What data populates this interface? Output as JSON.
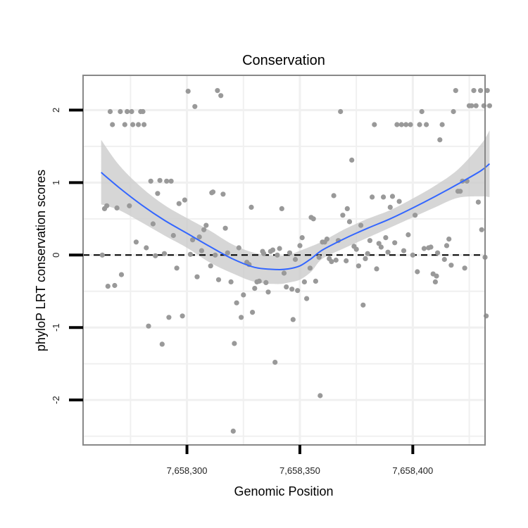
{
  "chart_data": {
    "type": "scatter",
    "title": "Conservation",
    "xlabel": "Genomic Position",
    "ylabel": "phyloP LRT conservation scores",
    "xlim": [
      7658254,
      7658432
    ],
    "ylim": [
      -2.62,
      2.48
    ],
    "x_ticks": [
      7658300,
      7658350,
      7658400
    ],
    "x_tick_labels": [
      "7,658,300",
      "7,658,350",
      "7,658,400"
    ],
    "y_ticks": [
      -2,
      -1,
      0,
      1,
      2
    ],
    "y_tick_labels": [
      "-2",
      "-1",
      "0",
      "1",
      "2"
    ],
    "x_minor_grid": [
      7658275,
      7658325,
      7658375,
      7658425
    ],
    "y_minor_grid": [
      -2.5,
      -1.5,
      -0.5,
      0.5,
      1.5
    ],
    "hline": {
      "y": 0,
      "style": "dashed"
    },
    "colors": {
      "points": "#999999",
      "smooth": "#3366ff",
      "band": "#cccccc",
      "border": "#888888",
      "grid": "#f0f0f0"
    },
    "series": [
      {
        "name": "observations",
        "points": [
          [
            7658262.5,
            0.0
          ],
          [
            7658263.5,
            0.64
          ],
          [
            7658264.5,
            0.68
          ],
          [
            7658265,
            -0.43
          ],
          [
            7658266,
            1.98
          ],
          [
            7658267,
            1.8
          ],
          [
            7658268,
            -0.42
          ],
          [
            7658269,
            0.65
          ],
          [
            7658270.5,
            1.98
          ],
          [
            7658271,
            -0.27
          ],
          [
            7658272.5,
            1.8
          ],
          [
            7658273.5,
            1.98
          ],
          [
            7658274.5,
            0.68
          ],
          [
            7658275.5,
            1.98
          ],
          [
            7658276,
            1.8
          ],
          [
            7658277.5,
            0.18
          ],
          [
            7658278.5,
            1.8
          ],
          [
            7658279.5,
            1.98
          ],
          [
            7658280.5,
            1.98
          ],
          [
            7658281,
            1.8
          ],
          [
            7658282,
            0.1
          ],
          [
            7658283,
            -0.98
          ],
          [
            7658284,
            1.02
          ],
          [
            7658285,
            0.43
          ],
          [
            7658286,
            -0.01
          ],
          [
            7658287,
            0.85
          ],
          [
            7658288,
            1.03
          ],
          [
            7658289,
            -1.23
          ],
          [
            7658290,
            0.02
          ],
          [
            7658291,
            1.02
          ],
          [
            7658292,
            -0.86
          ],
          [
            7658293,
            1.02
          ],
          [
            7658294,
            0.27
          ],
          [
            7658295.5,
            -0.18
          ],
          [
            7658296.5,
            0.71
          ],
          [
            7658298,
            -0.84
          ],
          [
            7658299,
            0.76
          ],
          [
            7658300.5,
            2.26
          ],
          [
            7658301.5,
            0.01
          ],
          [
            7658302.5,
            0.21
          ],
          [
            7658303.5,
            2.05
          ],
          [
            7658304.5,
            -0.3
          ],
          [
            7658305.5,
            0.25
          ],
          [
            7658306.5,
            0.06
          ],
          [
            7658307.5,
            0.35
          ],
          [
            7658308.5,
            0.41
          ],
          [
            7658310.5,
            -0.15
          ],
          [
            7658311,
            0.86
          ],
          [
            7658311.5,
            0.87
          ],
          [
            7658312.5,
            0.0
          ],
          [
            7658313.5,
            2.27
          ],
          [
            7658314,
            -0.34
          ],
          [
            7658315,
            2.2
          ],
          [
            7658316,
            0.84
          ],
          [
            7658317,
            0.37
          ],
          [
            7658318,
            0.03
          ],
          [
            7658319.5,
            -0.37
          ],
          [
            7658320.5,
            -2.43
          ],
          [
            7658321,
            -1.22
          ],
          [
            7658322,
            -0.66
          ],
          [
            7658323,
            0.1
          ],
          [
            7658324,
            -0.86
          ],
          [
            7658325,
            -0.55
          ],
          [
            7658326.5,
            -0.1
          ],
          [
            7658327.5,
            -0.13
          ],
          [
            7658328.5,
            0.66
          ],
          [
            7658329,
            -0.79
          ],
          [
            7658330,
            -0.46
          ],
          [
            7658331,
            -0.37
          ],
          [
            7658332,
            -0.36
          ],
          [
            7658333.5,
            0.05
          ],
          [
            7658334,
            0.02
          ],
          [
            7658335,
            -0.38
          ],
          [
            7658336,
            -0.51
          ],
          [
            7658337,
            0.05
          ],
          [
            7658338,
            0.07
          ],
          [
            7658339,
            -1.48
          ],
          [
            7658340,
            0.0
          ],
          [
            7658341,
            0.09
          ],
          [
            7658342,
            0.64
          ],
          [
            7658343,
            -0.25
          ],
          [
            7658344,
            -0.44
          ],
          [
            7658345.5,
            0.03
          ],
          [
            7658346.5,
            -0.47
          ],
          [
            7658347,
            -0.89
          ],
          [
            7658348,
            -0.06
          ],
          [
            7658349,
            -0.49
          ],
          [
            7658350,
            0.13
          ],
          [
            7658351,
            0.24
          ],
          [
            7658352,
            -0.37
          ],
          [
            7658353,
            -0.6
          ],
          [
            7658354.5,
            -0.18
          ],
          [
            7658355,
            0.52
          ],
          [
            7658356,
            0.5
          ],
          [
            7658357,
            -0.36
          ],
          [
            7658358.5,
            -0.03
          ],
          [
            7658359,
            -1.94
          ],
          [
            7658360,
            0.18
          ],
          [
            7658361,
            0.18
          ],
          [
            7658362,
            0.22
          ],
          [
            7658363,
            -0.05
          ],
          [
            7658364,
            -0.09
          ],
          [
            7658365,
            0.82
          ],
          [
            7658366,
            -0.07
          ],
          [
            7658367,
            0.2
          ],
          [
            7658368,
            1.98
          ],
          [
            7658369,
            0.55
          ],
          [
            7658370.5,
            -0.08
          ],
          [
            7658371,
            0.64
          ],
          [
            7658372,
            0.46
          ],
          [
            7658373,
            1.31
          ],
          [
            7658374,
            0.12
          ],
          [
            7658375,
            0.08
          ],
          [
            7658376,
            -0.15
          ],
          [
            7658377,
            0.41
          ],
          [
            7658378,
            -0.69
          ],
          [
            7658379,
            -0.05
          ],
          [
            7658380,
            0.02
          ],
          [
            7658381,
            0.2
          ],
          [
            7658382,
            0.8
          ],
          [
            7658383,
            1.8
          ],
          [
            7658384,
            -0.19
          ],
          [
            7658385,
            0.16
          ],
          [
            7658386,
            0.11
          ],
          [
            7658387,
            0.8
          ],
          [
            7658388,
            0.24
          ],
          [
            7658389,
            0.04
          ],
          [
            7658390,
            0.66
          ],
          [
            7658391,
            0.81
          ],
          [
            7658392,
            0.17
          ],
          [
            7658393,
            1.8
          ],
          [
            7658394,
            0.74
          ],
          [
            7658395,
            1.8
          ],
          [
            7658396,
            0.06
          ],
          [
            7658397,
            1.8
          ],
          [
            7658398,
            0.28
          ],
          [
            7658399,
            1.8
          ],
          [
            7658400,
            0.0
          ],
          [
            7658401,
            0.55
          ],
          [
            7658402,
            -0.23
          ],
          [
            7658403,
            1.8
          ],
          [
            7658404,
            1.98
          ],
          [
            7658405,
            0.09
          ],
          [
            7658406,
            1.8
          ],
          [
            7658407,
            0.1
          ],
          [
            7658408,
            0.11
          ],
          [
            7658409,
            -0.26
          ],
          [
            7658410,
            -0.37
          ],
          [
            7658410.5,
            -0.29
          ],
          [
            7658411,
            0.03
          ],
          [
            7658412,
            1.59
          ],
          [
            7658413,
            1.8
          ],
          [
            7658414,
            -0.06
          ],
          [
            7658415,
            0.13
          ],
          [
            7658416,
            0.22
          ],
          [
            7658417,
            -0.14
          ],
          [
            7658418,
            1.98
          ],
          [
            7658419,
            2.27
          ],
          [
            7658420,
            0.88
          ],
          [
            7658421,
            0.88
          ],
          [
            7658422,
            1.02
          ],
          [
            7658423,
            -0.18
          ],
          [
            7658424,
            1.02
          ],
          [
            7658425,
            2.06
          ],
          [
            7658426,
            2.06
          ],
          [
            7658427,
            2.27
          ],
          [
            7658428,
            2.06
          ],
          [
            7658429,
            0.73
          ],
          [
            7658430,
            2.27
          ],
          [
            7658430.5,
            0.35
          ],
          [
            7658431.5,
            2.06
          ],
          [
            7658432,
            -0.03
          ],
          [
            7658432.5,
            -0.84
          ],
          [
            7658433,
            2.27
          ],
          [
            7658434,
            2.06
          ]
        ]
      },
      {
        "name": "loess smooth",
        "x": [
          7658262,
          7658270,
          7658280,
          7658290,
          7658300,
          7658310,
          7658320,
          7658330,
          7658340,
          7658345,
          7658350,
          7658355,
          7658360,
          7658370,
          7658380,
          7658390,
          7658400,
          7658410,
          7658420,
          7658430,
          7658434
        ],
        "y": [
          1.14,
          0.93,
          0.69,
          0.48,
          0.3,
          0.12,
          -0.05,
          -0.17,
          -0.2,
          -0.19,
          -0.15,
          -0.05,
          0.07,
          0.23,
          0.37,
          0.5,
          0.65,
          0.81,
          0.98,
          1.16,
          1.26
        ],
        "upper": [
          1.59,
          1.24,
          0.93,
          0.69,
          0.51,
          0.34,
          0.15,
          0.03,
          -0.01,
          0.0,
          0.06,
          0.12,
          0.19,
          0.36,
          0.5,
          0.62,
          0.78,
          0.96,
          1.18,
          1.52,
          1.72
        ],
        "lower": [
          0.7,
          0.62,
          0.45,
          0.27,
          0.1,
          -0.1,
          -0.25,
          -0.37,
          -0.4,
          -0.38,
          -0.34,
          -0.23,
          -0.05,
          0.1,
          0.24,
          0.38,
          0.52,
          0.66,
          0.79,
          0.81,
          0.8
        ]
      }
    ]
  }
}
